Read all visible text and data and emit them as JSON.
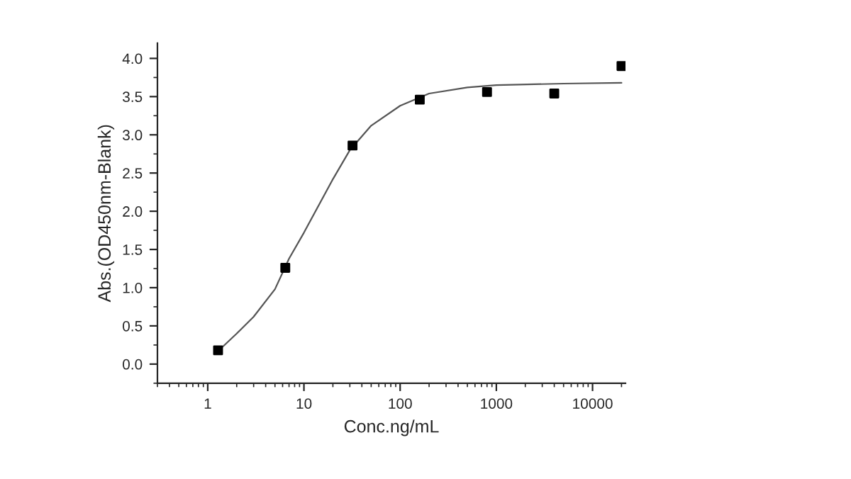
{
  "chart_data": {
    "type": "scatter",
    "xlabel": "Conc.ng/mL",
    "ylabel": "Abs.(OD450nm-Blank)",
    "log": "x",
    "grid": false,
    "legend": false,
    "xlim": [
      0.3,
      22000
    ],
    "xticks": [
      1,
      10,
      100,
      1000,
      10000
    ],
    "ylim": [
      -0.25,
      4.2
    ],
    "yticks": [
      {
        "value": 0,
        "label": "0.0"
      },
      0.5,
      {
        "value": 1,
        "label": "1.0"
      },
      1.5,
      {
        "value": 2,
        "label": "2.0"
      },
      2.5,
      {
        "value": 3,
        "label": "3.0"
      },
      3.5,
      {
        "value": 4,
        "label": "4.0"
      }
    ],
    "series": [
      {
        "marker": "square",
        "color": "#000000",
        "x": [
          1.28,
          6.4,
          32,
          160,
          800,
          4000,
          20000
        ],
        "values": [
          0.18,
          1.26,
          2.86,
          3.46,
          3.56,
          3.54,
          3.9
        ]
      },
      {
        "type": "line",
        "color": "#555555",
        "x": [
          1.28,
          2,
          3,
          5,
          7,
          10,
          20,
          30,
          50,
          100,
          200,
          500,
          1000,
          5000,
          20000
        ],
        "values": [
          0.17,
          0.4,
          0.62,
          0.98,
          1.38,
          1.72,
          2.42,
          2.8,
          3.12,
          3.38,
          3.54,
          3.62,
          3.65,
          3.67,
          3.68
        ]
      }
    ]
  }
}
